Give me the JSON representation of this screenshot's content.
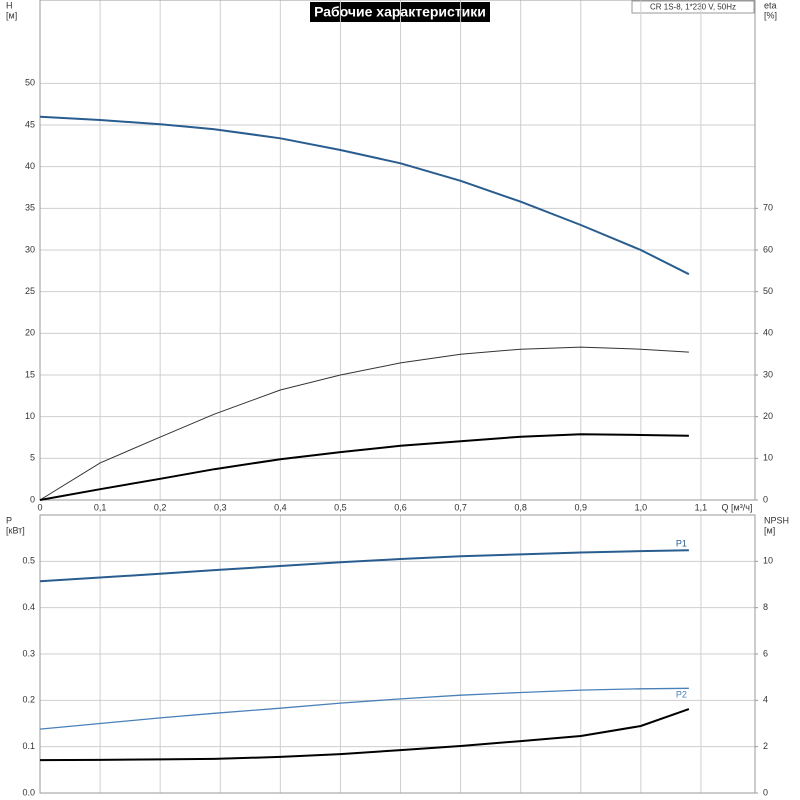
{
  "chart_data": [
    {
      "type": "line",
      "title": "Рабочие характеристики",
      "annotation": "CR 1S-8, 1*230 V, 50Hz",
      "ylabel": "H",
      "ylabel_unit": "[м]",
      "y2label": "eta",
      "y2label_unit": "[%]",
      "xlabel": "Q [м³/ч]",
      "x": [
        0,
        0.1,
        0.2,
        0.29,
        0.4,
        0.5,
        0.6,
        0.7,
        0.8,
        0.9,
        1.0,
        1.08
      ],
      "xlim": [
        0,
        1.19
      ],
      "xticks": [
        0,
        {
          "value": 0.1,
          "label": "0,1"
        },
        {
          "value": 0.2,
          "label": "0,2"
        },
        {
          "value": 0.3,
          "label": "0,3"
        },
        {
          "value": 0.4,
          "label": "0,4"
        },
        {
          "value": 0.5,
          "label": "0,5"
        },
        {
          "value": 0.6,
          "label": "0,6"
        },
        {
          "value": 0.7,
          "label": "0,7"
        },
        {
          "value": 0.8,
          "label": "0,8"
        },
        {
          "value": 0.9,
          "label": "0,9"
        },
        {
          "value": 1.0,
          "label": "1,0"
        },
        {
          "value": 1.1,
          "label": "1,1"
        }
      ],
      "ylim": [
        0,
        60
      ],
      "yticks": [
        0,
        5,
        10,
        15,
        20,
        25,
        30,
        35,
        40,
        45,
        50
      ],
      "y2lim": [
        0,
        120
      ],
      "y2ticks": [
        0,
        10,
        20,
        30,
        40,
        50,
        60,
        70
      ],
      "grid": true,
      "series": [
        {
          "color": "#2a5d8f",
          "line_width": 2,
          "values": [
            46,
            45.6,
            45.1,
            44.5,
            43.4,
            42,
            40.4,
            38.3,
            35.8,
            33,
            30,
            27.1
          ]
        },
        {
          "axis": "y2",
          "color": "#333333",
          "line_width": 1,
          "values": [
            0,
            8.9,
            15.1,
            20.6,
            26.4,
            30,
            32.9,
            35,
            36.2,
            36.7,
            36.2,
            35.5
          ]
        },
        {
          "axis": "y2",
          "color": "#000000",
          "line_width": 2,
          "values": [
            0,
            2.6,
            5.1,
            7.4,
            9.8,
            11.5,
            13,
            14.1,
            15.2,
            15.8,
            15.6,
            15.4
          ]
        }
      ]
    },
    {
      "type": "line",
      "ylabel": "P",
      "ylabel_unit": "[кВт]",
      "y2label": "NPSH",
      "y2label_unit": "[м]",
      "x": [
        0,
        0.1,
        0.2,
        0.29,
        0.4,
        0.5,
        0.6,
        0.7,
        0.8,
        0.9,
        1.0,
        1.08
      ],
      "xlim": [
        0,
        1.19
      ],
      "ylim": [
        0,
        0.6
      ],
      "yticks": [
        {
          "value": 0,
          "label": "0.0"
        },
        0.1,
        0.2,
        0.3,
        0.4,
        0.5
      ],
      "y2lim": [
        0,
        12
      ],
      "y2ticks": [
        0,
        2,
        4,
        6,
        8,
        10
      ],
      "grid": true,
      "series": [
        {
          "name": "P1",
          "color": "#2a5d8f",
          "line_width": 2,
          "values": [
            0.457,
            0.465,
            0.473,
            0.481,
            0.49,
            0.498,
            0.505,
            0.511,
            0.515,
            0.519,
            0.522,
            0.524
          ]
        },
        {
          "name": "P2",
          "color": "#4a80b8",
          "line_width": 1.3,
          "values": [
            0.138,
            0.15,
            0.162,
            0.172,
            0.183,
            0.194,
            0.203,
            0.211,
            0.217,
            0.222,
            0.225,
            0.226
          ]
        },
        {
          "axis": "y2",
          "color": "#000000",
          "line_width": 2,
          "values": [
            1.42,
            1.43,
            1.45,
            1.47,
            1.56,
            1.68,
            1.85,
            2.03,
            2.24,
            2.46,
            2.89,
            3.62
          ]
        }
      ]
    }
  ]
}
